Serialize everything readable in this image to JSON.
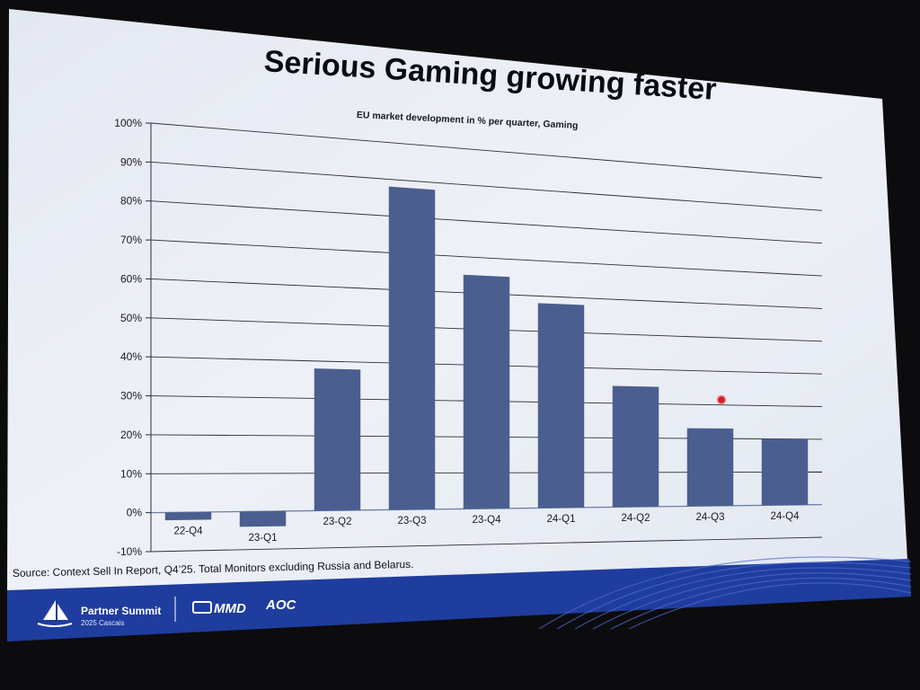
{
  "slide": {
    "title": "Serious Gaming growing faster",
    "source": "Source: Context Sell In Report, Q4’25. Total Monitors excluding Russia and Belarus."
  },
  "footer": {
    "event_name": "Partner Summit",
    "event_sub": "2025 Cascais",
    "brand_1": "MMD",
    "brand_2": "AOC",
    "band_color": "#1f3d9e"
  },
  "chart_data": {
    "type": "bar",
    "title": "EU market development in % per quarter, Gaming",
    "categories": [
      "22-Q4",
      "23-Q1",
      "23-Q2",
      "23-Q3",
      "23-Q4",
      "24-Q1",
      "24-Q2",
      "24-Q3",
      "24-Q4"
    ],
    "values": [
      -2,
      -4,
      38,
      88,
      65,
      58,
      35,
      23,
      20
    ],
    "ylim": [
      -10,
      100
    ],
    "yticks": [
      "-10%",
      "0%",
      "10%",
      "20%",
      "30%",
      "40%",
      "50%",
      "60%",
      "70%",
      "80%",
      "90%",
      "100%"
    ],
    "grid": true,
    "bar_color": "#4a5f8f"
  }
}
